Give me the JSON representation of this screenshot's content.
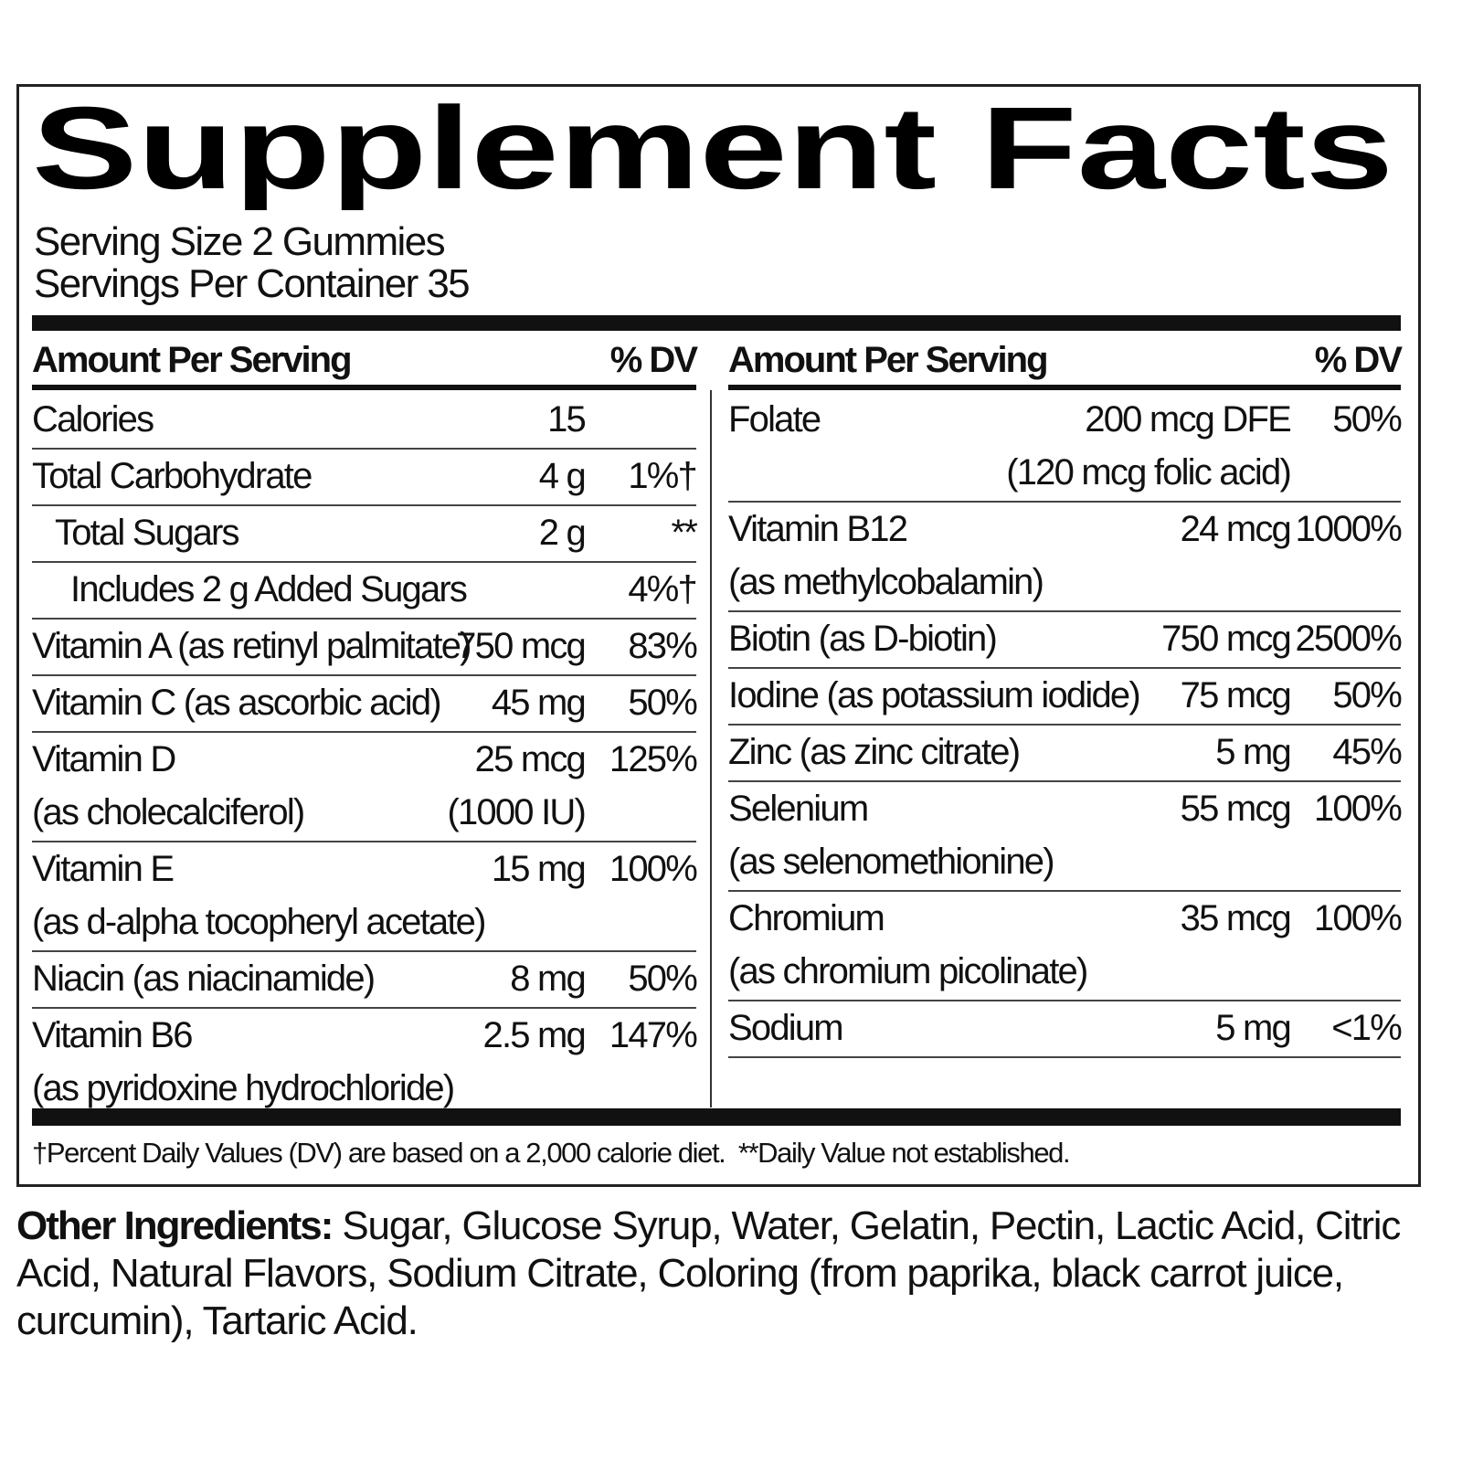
{
  "title": "Supplement Facts",
  "serving_size": "Serving Size 2 Gummies",
  "servings_per_container": "Servings Per Container 35",
  "columns": [
    {
      "header": {
        "amount": "Amount Per Serving",
        "dv": "% DV"
      },
      "rows": [
        {
          "name": [
            "Calories"
          ],
          "amount": [
            "15"
          ]
        },
        {
          "name": [
            "Total Carbohydrate"
          ],
          "amount": [
            "4 g"
          ],
          "dv": "1%†"
        },
        {
          "name": [
            "Total Sugars"
          ],
          "amount": [
            "2 g"
          ],
          "dv": "**"
        },
        {
          "name": [
            "Includes 2 g Added Sugars"
          ],
          "dv": "4%†"
        },
        {
          "name": [
            "Vitamin A (as retinyl palmitate)"
          ],
          "amount": [
            "750 mcg"
          ],
          "dv": "83%"
        },
        {
          "name": [
            "Vitamin C (as ascorbic acid)"
          ],
          "amount": [
            "45 mg"
          ],
          "dv": "50%"
        },
        {
          "name": [
            "Vitamin D",
            "(as cholecalciferol)"
          ],
          "amount": [
            "25 mcg",
            "(1000 IU)"
          ],
          "dv": "125%"
        },
        {
          "name": [
            "Vitamin E",
            "(as d-alpha tocopheryl acetate)"
          ],
          "amount": [
            "15 mg"
          ],
          "dv": "100%"
        },
        {
          "name": [
            "Niacin (as niacinamide)"
          ],
          "amount": [
            "8 mg"
          ],
          "dv": "50%"
        },
        {
          "name": [
            "Vitamin B6",
            "(as pyridoxine hydrochloride)"
          ],
          "amount": [
            "2.5 mg"
          ],
          "dv": "147%"
        }
      ]
    },
    {
      "header": {
        "amount": "Amount Per Serving",
        "dv": "% DV"
      },
      "rows": [
        {
          "name": [
            "Folate"
          ],
          "amount": [
            "200 mcg DFE",
            "(120 mcg folic acid)"
          ],
          "dv": "50%"
        },
        {
          "name": [
            "Vitamin B12",
            "(as methylcobalamin)"
          ],
          "amount": [
            "24 mcg"
          ],
          "dv": "1000%"
        },
        {
          "name": [
            "Biotin (as D-biotin)"
          ],
          "amount": [
            "750 mcg"
          ],
          "dv": "2500%"
        },
        {
          "name": [
            "Iodine (as potassium iodide)"
          ],
          "amount": [
            "75 mcg"
          ],
          "dv": "50%"
        },
        {
          "name": [
            "Zinc (as zinc citrate)"
          ],
          "amount": [
            "5 mg"
          ],
          "dv": "45%"
        },
        {
          "name": [
            "Selenium",
            "(as selenomethionine)"
          ],
          "amount": [
            "55 mcg"
          ],
          "dv": "100%"
        },
        {
          "name": [
            "Chromium",
            "(as chromium picolinate)"
          ],
          "amount": [
            "35 mcg"
          ],
          "dv": "100%"
        },
        {
          "name": [
            "Sodium"
          ],
          "amount": [
            "5 mg"
          ],
          "dv": "<1%"
        }
      ]
    }
  ],
  "footnote": [
    "†Percent Daily Values (DV) are based on a 2,000 calorie diet.",
    "**Daily Value not established."
  ],
  "other_ingredients": {
    "label": "Other Ingredients:",
    "text": "Sugar, Glucose Syrup, Water, Gelatin, Pectin, Lactic Acid, Citric Acid, Natural Flavors, Sodium Citrate, Coloring (from paprika, black carrot juice, curcumin), Tartaric Acid."
  }
}
